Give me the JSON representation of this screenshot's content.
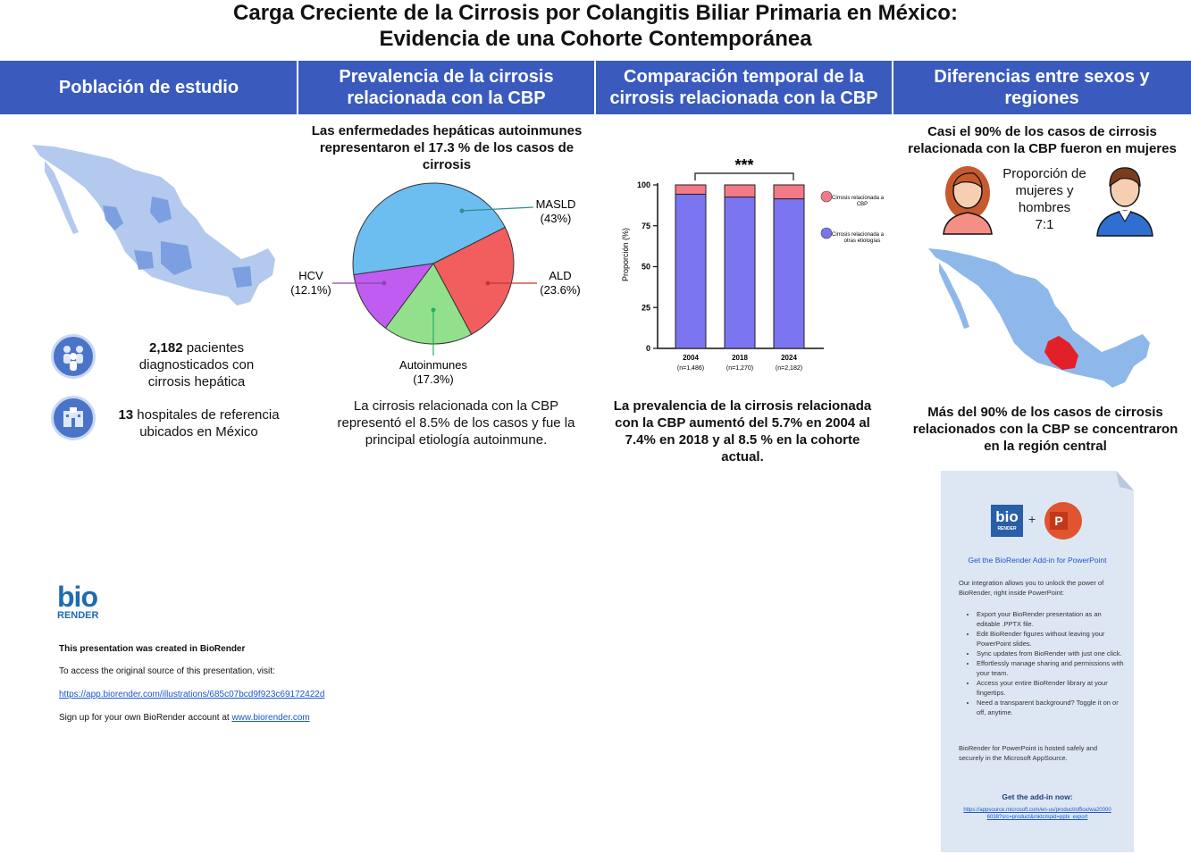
{
  "title_line1": "Carga Creciente de la Cirrosis por Colangitis Biliar Primaria en México:",
  "title_line2": "Evidencia de una Cohorte Contemporánea",
  "headers": [
    "Población de estudio",
    "Prevalencia de la cirrosis relacionada con la CBP",
    "Comparación temporal de la cirrosis relacionada con la CBP",
    "Diferencias entre sexos y regiones"
  ],
  "study": {
    "patients_count": "2,182",
    "patients_text": "pacientes diagnosticados con cirrosis hepática",
    "hospitals_count": "13",
    "hospitals_text": "hospitales de referencia ubicados en México"
  },
  "prevalence": {
    "top_text": "Las enfermedades hepáticas autoinmunes representaron el 17.3 % de los casos de cirrosis",
    "bottom_text": "La cirrosis relacionada con la CBP representó el 8.5% de los casos y fue la principal etiología autoinmune.",
    "labels": {
      "masld_name": "MASLD",
      "masld_pct": "(43%)",
      "ald_name": "ALD",
      "ald_pct": "(23.6%)",
      "hcv_name": "HCV",
      "hcv_pct": "(12.1%)",
      "auto_name": "Autoinmunes",
      "auto_pct": "(17.3%)"
    }
  },
  "chart_data": [
    {
      "type": "pie",
      "slices": [
        {
          "name": "MASLD",
          "value": 43,
          "color": "#6cbdf0"
        },
        {
          "name": "ALD",
          "value": 23.6,
          "color": "#f25e5e"
        },
        {
          "name": "Autoinmunes",
          "value": 17.3,
          "color": "#92e08c"
        },
        {
          "name": "HCV",
          "value": 12.1,
          "color": "#c05cf0"
        }
      ]
    },
    {
      "type": "bar",
      "stacked": true,
      "categories": [
        "2004",
        "2018",
        "2024"
      ],
      "category_sublabels": [
        "(n=1,486)",
        "(n=1,270)",
        "(n=2,182)"
      ],
      "series": [
        {
          "name": "Cirrosis relacionada a otras etiologías",
          "values": [
            94.3,
            92.6,
            91.5
          ],
          "color": "#7b74f0"
        },
        {
          "name": "Cirrosis relacionada a CBP",
          "values": [
            5.7,
            7.4,
            8.5
          ],
          "color": "#f27a86"
        }
      ],
      "ylabel": "Proporción (%)",
      "ylim": [
        0,
        100
      ],
      "yticks": [
        "0",
        "25",
        "50",
        "75",
        "100"
      ],
      "significance": "***",
      "legend_position": "right"
    }
  ],
  "temporal": {
    "legend_pbc_line1": "Cirrosis relacionada a",
    "legend_pbc_line2": "CBP",
    "legend_other_line1": "Cirrosis relacionada a",
    "legend_other_line2": "otras etiologías",
    "bottom_text": "La prevalencia de la cirrosis relacionada con la CBP aumentó del 5.7% en 2004 al 7.4% en 2018 y al 8.5 % en la cohorte actual."
  },
  "sex_region": {
    "top_text": "Casi el 90% de los casos de cirrosis relacionada con la CBP fueron en mujeres",
    "ratio_label": "Proporción de mujeres y hombres",
    "ratio_value": "7:1",
    "bottom_text": "Más del 90% de los casos de cirrosis relacionados con la CBP se concentraron en la región central"
  },
  "biorender": {
    "logo_top": "bio",
    "logo_bottom": "RENDER",
    "created": "This presentation was created in BioRender",
    "access": "To access the original source of this presentation, visit:",
    "url": "https://app.biorender.com/illustrations/685c07bcd9f923c69172422d",
    "signup": "Sign up for your own BioRender account at",
    "signup_link": "www.biorender.com"
  },
  "addin": {
    "logo_top": "bio",
    "logo_bottom": "RENDER",
    "plus": "+",
    "ppt_letter": "P",
    "title": "Get the BioRender Add-in for PowerPoint",
    "intro": "Our integration allows you to unlock the power of BioRender, right inside PowerPoint:",
    "bullets": [
      "Export your BioRender presentation as an editable .PPTX file.",
      "Edit BioRender figures without leaving your PowerPoint slides.",
      "Sync updates from BioRender with just one click.",
      "Effortlessly manage sharing and permissions with your team.",
      "Access your entire BioRender library at your fingertips.",
      "Need a transparent background? Toggle it on or off, anytime."
    ],
    "hosted": "BioRender for PowerPoint is hosted safely and securely in the Microsoft AppSource.",
    "cta": "Get the add-in now:",
    "link": "https://appsource.microsoft.com/en-us/product/office/wa200006038?src=product&mktcmpid=pptx_export"
  }
}
